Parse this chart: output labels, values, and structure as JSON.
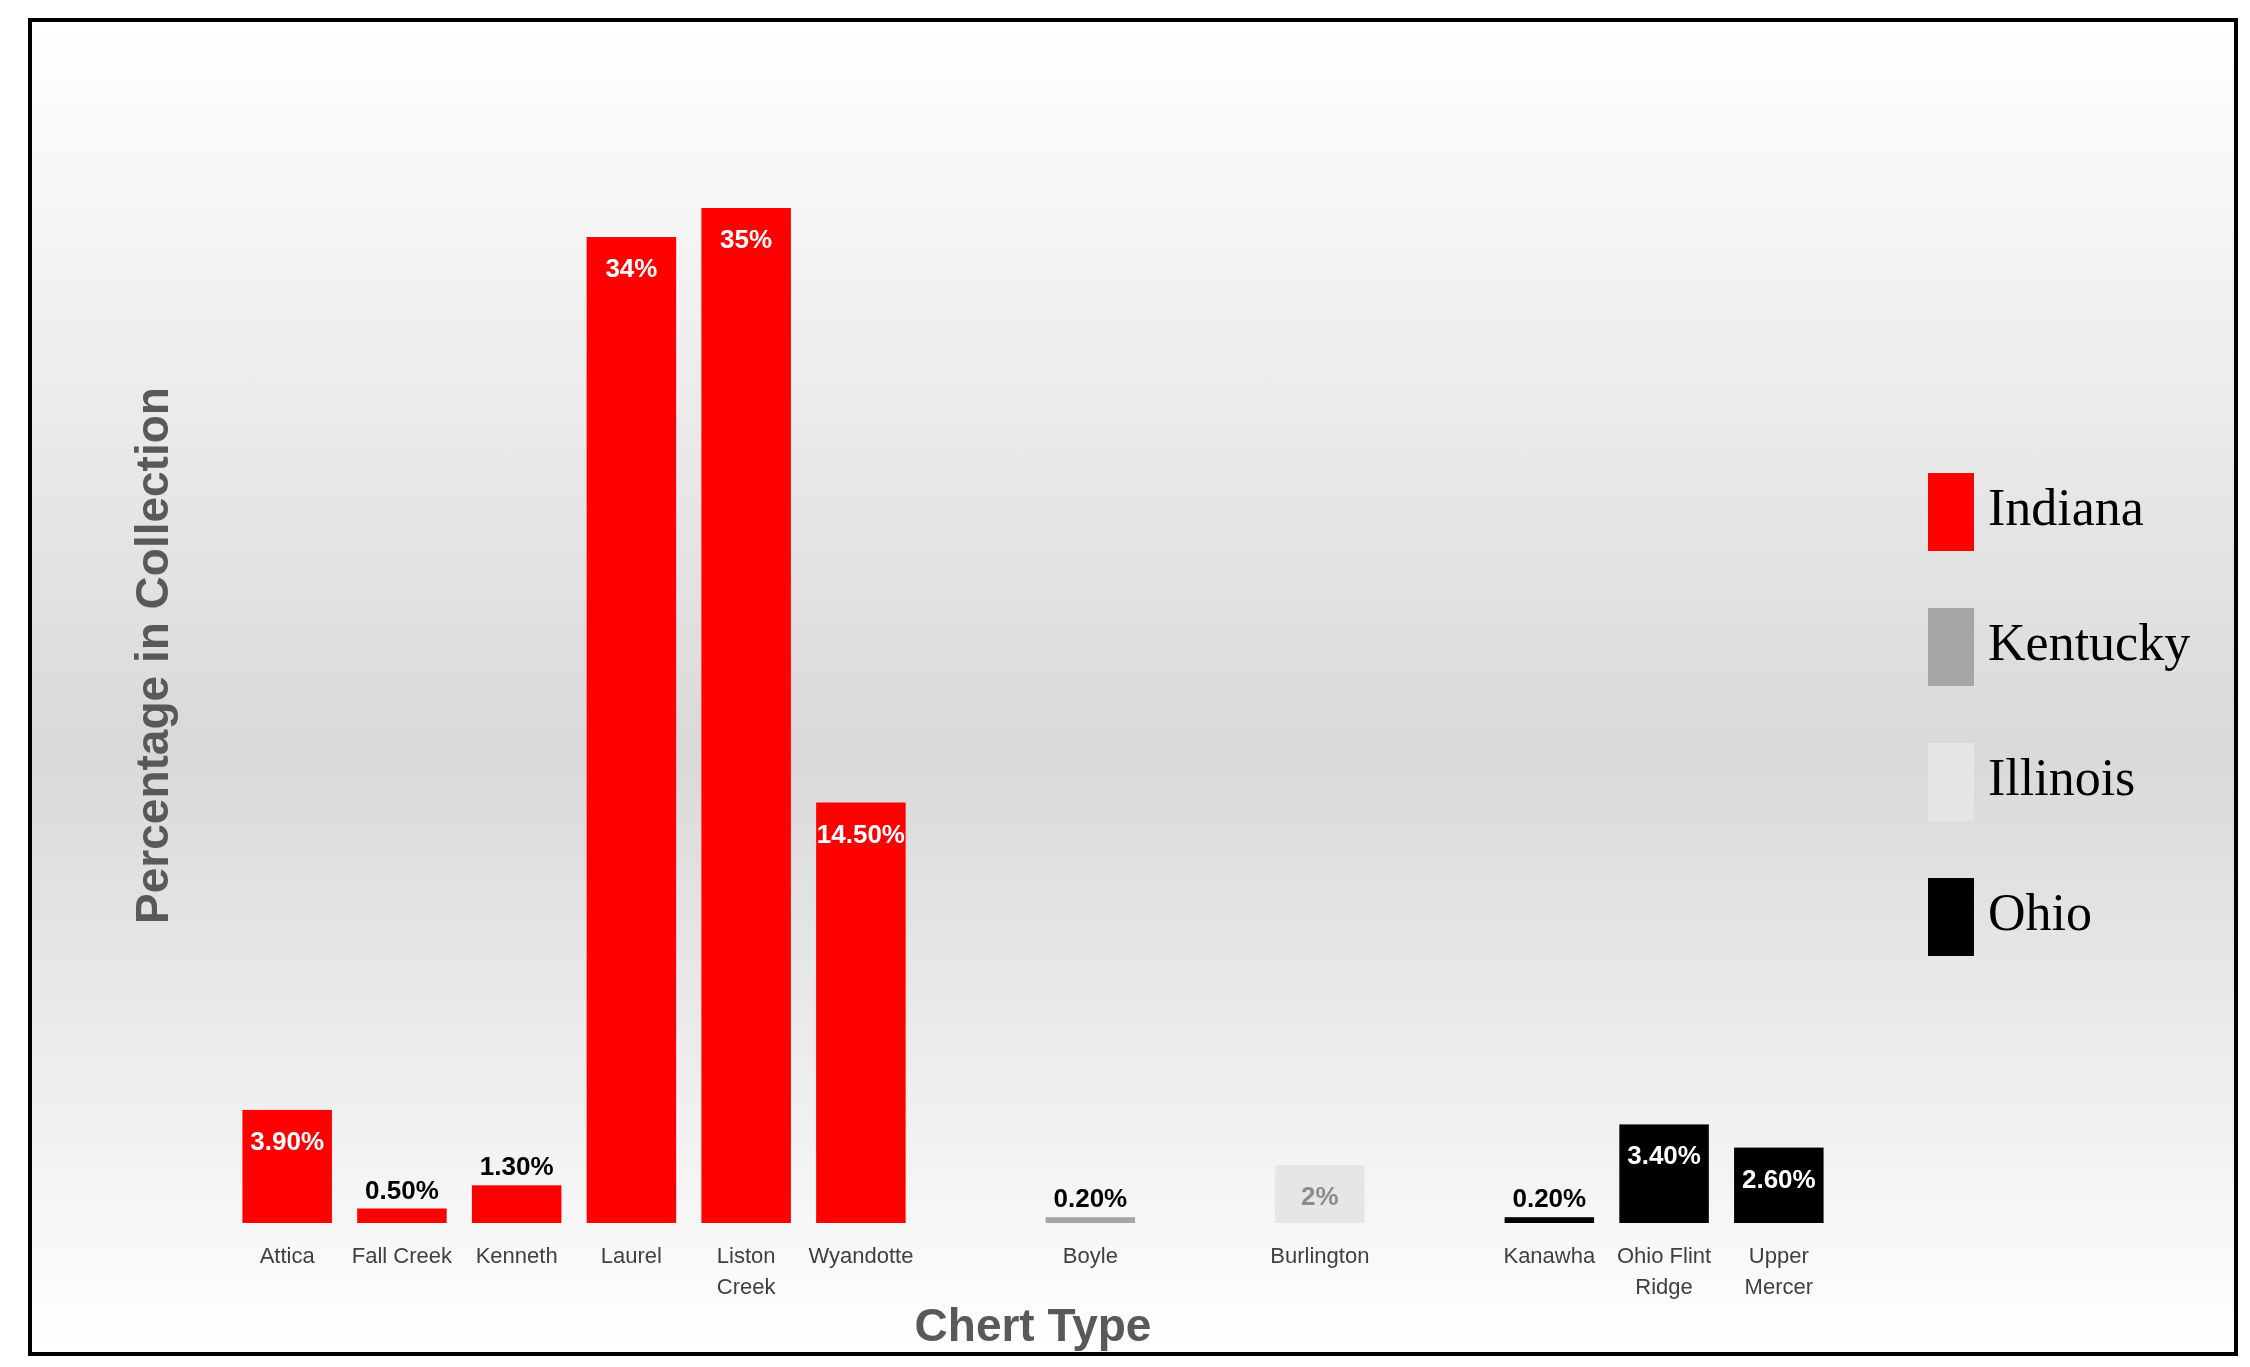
{
  "chart_data": {
    "type": "bar",
    "xlabel": "Chert Type",
    "ylabel": "Percentage in Collection",
    "categories": [
      "Attica",
      "Fall Creek",
      "Kenneth",
      "Laurel",
      "Liston Creek",
      "Wyandotte",
      null,
      "Boyle",
      null,
      "Burlington",
      null,
      "Kanawha",
      "Ohio Flint Ridge",
      "Upper Mercer"
    ],
    "series": [
      {
        "name": "Indiana",
        "color": "#ff0000",
        "values": [
          3.9,
          0.5,
          1.3,
          34,
          35,
          14.5,
          null,
          null,
          null,
          null,
          null,
          null,
          null,
          null
        ],
        "value_labels": [
          "3.90%",
          "0.50%",
          "1.30%",
          "34%",
          "35%",
          "14.50%",
          null,
          null,
          null,
          null,
          null,
          null,
          null,
          null
        ]
      },
      {
        "name": "Kentucky",
        "color": "#a6a6a6",
        "values": [
          null,
          null,
          null,
          null,
          null,
          null,
          null,
          0.2,
          null,
          null,
          null,
          null,
          null,
          null
        ],
        "value_labels": [
          null,
          null,
          null,
          null,
          null,
          null,
          null,
          "0.20%",
          null,
          null,
          null,
          null,
          null,
          null
        ]
      },
      {
        "name": "Illinois",
        "color": "#e6e6e6",
        "values": [
          null,
          null,
          null,
          null,
          null,
          null,
          null,
          null,
          null,
          2,
          null,
          null,
          null,
          null
        ],
        "value_labels": [
          null,
          null,
          null,
          null,
          null,
          null,
          null,
          null,
          null,
          "2%",
          null,
          null,
          null,
          null
        ]
      },
      {
        "name": "Ohio",
        "color": "#000000",
        "values": [
          null,
          null,
          null,
          null,
          null,
          null,
          null,
          null,
          null,
          null,
          null,
          0.2,
          3.4,
          2.6
        ],
        "value_labels": [
          null,
          null,
          null,
          null,
          null,
          null,
          null,
          null,
          null,
          null,
          null,
          "0.20%",
          "3.40%",
          "2.60%"
        ]
      }
    ],
    "legend": "right"
  }
}
